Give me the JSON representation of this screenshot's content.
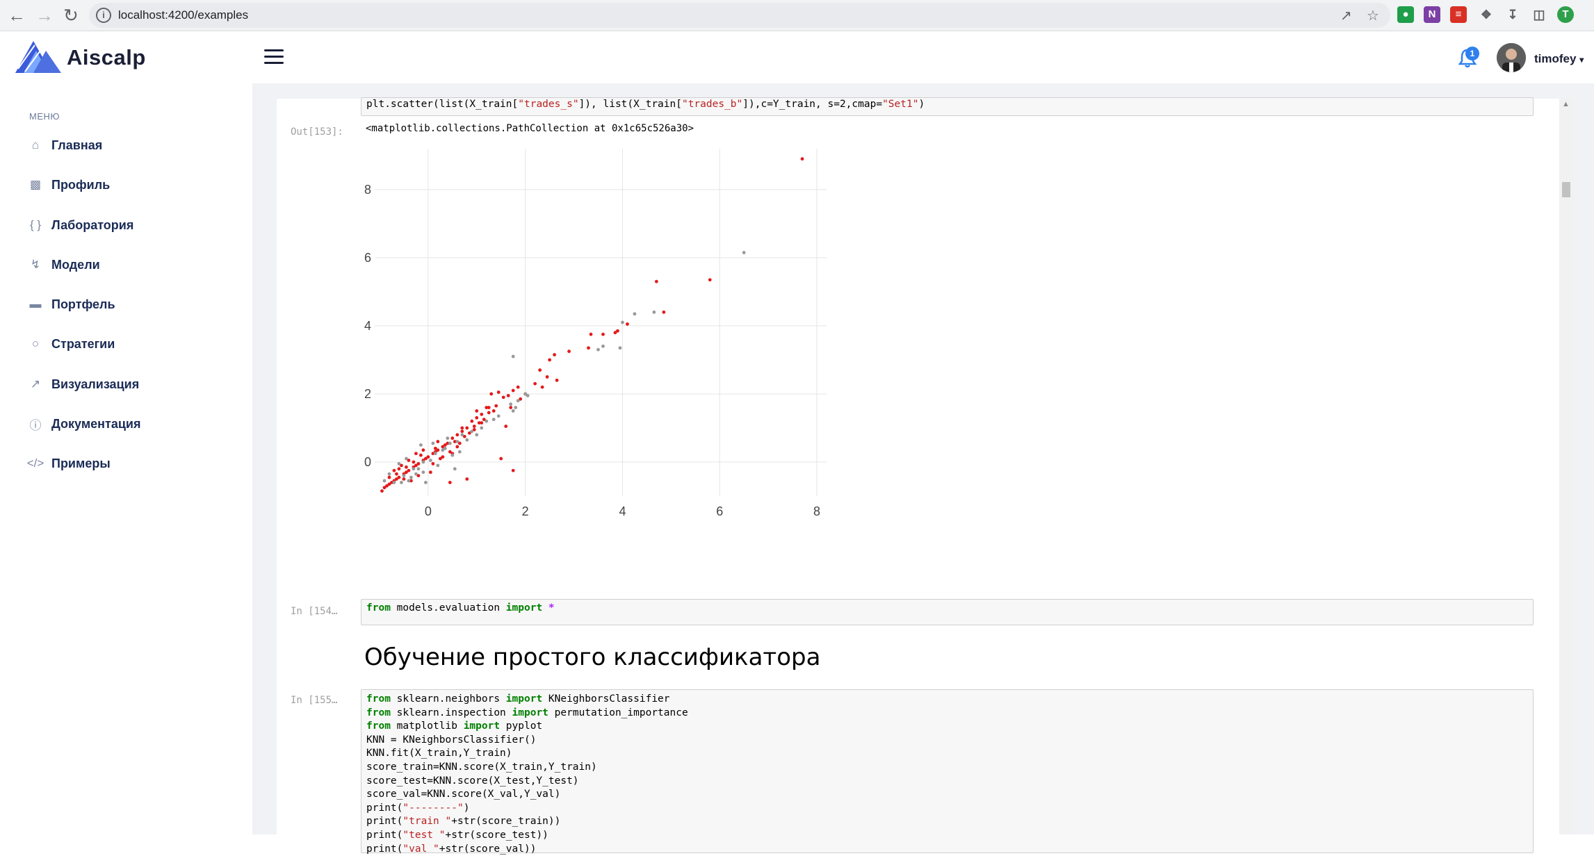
{
  "browser": {
    "url": "localhost:4200/examples",
    "profile_initial": "T"
  },
  "app": {
    "name": "Aiscalp",
    "notifications_count": "1",
    "username": "timofey"
  },
  "sidebar": {
    "menu_title": "МЕНЮ",
    "items": [
      {
        "label": "Главная",
        "icon": "home-icon"
      },
      {
        "label": "Профиль",
        "icon": "profile-icon"
      },
      {
        "label": "Лаборатория",
        "icon": "braces-icon"
      },
      {
        "label": "Модели",
        "icon": "lightning-icon"
      },
      {
        "label": "Портфель",
        "icon": "wallet-icon"
      },
      {
        "label": "Стратегии",
        "icon": "lightbulb-icon"
      },
      {
        "label": "Визуализация",
        "icon": "chart-line-icon"
      },
      {
        "label": "Документация",
        "icon": "info-icon"
      },
      {
        "label": "Примеры",
        "icon": "code-icon"
      }
    ]
  },
  "notebook": {
    "cell1_code": [
      "plt.scatter(list(X_train[\"trades_s\"]), list(X_train[\"trades_b\"]),c=Y_train, s=2,cmap=\"Set1\")"
    ],
    "out_prompt": "Out[153]:",
    "out_text": "<matplotlib.collections.PathCollection at 0x1c65c526a30>",
    "cell2_prompt": "In [154…",
    "cell2_code": [
      "from models.evaluation import *"
    ],
    "heading": "Обучение простого классификатора",
    "cell3_prompt": "In [155…",
    "cell3_code": [
      "from sklearn.neighbors import KNeighborsClassifier",
      "from sklearn.inspection import permutation_importance",
      "from matplotlib import pyplot",
      "KNN = KNeighborsClassifier()",
      "KNN.fit(X_train,Y_train)",
      "score_train=KNN.score(X_train,Y_train)",
      "score_test=KNN.score(X_test,Y_test)",
      "score_val=KNN.score(X_val,Y_val)",
      "print(\"--------\")",
      "print(\"train \"+str(score_train))",
      "print(\"test \"+str(score_test))",
      "print(\"val \"+str(score_val))"
    ]
  },
  "chart_data": {
    "type": "scatter",
    "title": "",
    "xlabel": "",
    "ylabel": "",
    "xlim": [
      -1.1,
      8.2
    ],
    "ylim": [
      -1.0,
      9.2
    ],
    "xticks": [
      0,
      2,
      4,
      6,
      8
    ],
    "yticks": [
      0,
      2,
      4,
      6,
      8
    ],
    "grid": true,
    "colors": {
      "red": "#e41a1c",
      "gray": "#999999"
    },
    "series": [
      {
        "color": "red",
        "points": [
          [
            7.7,
            8.9
          ],
          [
            5.8,
            5.35
          ],
          [
            4.7,
            5.3
          ],
          [
            4.85,
            4.4
          ],
          [
            4.1,
            4.05
          ],
          [
            3.9,
            3.85
          ],
          [
            3.85,
            3.8
          ],
          [
            3.6,
            3.75
          ],
          [
            3.35,
            3.75
          ],
          [
            3.3,
            3.35
          ],
          [
            2.9,
            3.25
          ],
          [
            2.6,
            3.15
          ],
          [
            2.3,
            2.7
          ],
          [
            2.5,
            3.0
          ],
          [
            2.35,
            2.2
          ],
          [
            2.0,
            2.0
          ],
          [
            1.75,
            2.1
          ],
          [
            1.55,
            1.9
          ],
          [
            1.45,
            2.05
          ],
          [
            1.3,
            2.0
          ],
          [
            1.4,
            1.65
          ],
          [
            1.2,
            1.6
          ],
          [
            1.1,
            1.4
          ],
          [
            1.0,
            1.3
          ],
          [
            0.9,
            1.2
          ],
          [
            0.8,
            1.0
          ],
          [
            0.7,
            0.9
          ],
          [
            0.6,
            0.8
          ],
          [
            0.5,
            0.7
          ],
          [
            0.4,
            0.55
          ],
          [
            0.3,
            0.45
          ],
          [
            0.2,
            0.35
          ],
          [
            0.1,
            0.25
          ],
          [
            0.0,
            0.15
          ],
          [
            -0.1,
            0.05
          ],
          [
            -0.2,
            -0.05
          ],
          [
            -0.3,
            -0.15
          ],
          [
            -0.4,
            -0.25
          ],
          [
            -0.5,
            -0.35
          ],
          [
            -0.6,
            -0.45
          ],
          [
            -0.7,
            -0.55
          ],
          [
            -0.8,
            -0.65
          ],
          [
            -0.95,
            -0.85
          ],
          [
            1.5,
            0.1
          ],
          [
            1.75,
            -0.25
          ],
          [
            0.8,
            -0.5
          ],
          [
            0.45,
            -0.6
          ],
          [
            1.6,
            1.05
          ],
          [
            1.25,
            1.6
          ],
          [
            1.65,
            1.95
          ],
          [
            1.1,
            1.15
          ],
          [
            0.95,
            0.95
          ],
          [
            0.55,
            0.6
          ],
          [
            0.35,
            0.5
          ],
          [
            0.15,
            0.3
          ],
          [
            -0.05,
            0.1
          ],
          [
            -0.25,
            -0.1
          ],
          [
            -0.45,
            -0.3
          ],
          [
            -0.65,
            -0.5
          ],
          [
            -0.75,
            -0.6
          ],
          [
            -0.85,
            -0.7
          ],
          [
            -0.6,
            -0.2
          ],
          [
            -0.3,
            0.0
          ],
          [
            -0.5,
            -0.5
          ],
          [
            -0.2,
            -0.4
          ],
          [
            0.05,
            -0.3
          ],
          [
            0.25,
            0.1
          ],
          [
            0.45,
            0.3
          ],
          [
            0.65,
            0.55
          ],
          [
            0.85,
            0.85
          ],
          [
            1.05,
            1.15
          ],
          [
            1.25,
            1.45
          ],
          [
            -0.35,
            -0.55
          ],
          [
            -0.15,
            0.2
          ],
          [
            0.15,
            0.4
          ],
          [
            -0.55,
            -0.1
          ],
          [
            0.5,
            0.25
          ],
          [
            0.75,
            0.75
          ],
          [
            0.95,
            1.05
          ],
          [
            1.15,
            1.25
          ],
          [
            1.35,
            1.5
          ],
          [
            2.2,
            2.3
          ],
          [
            2.45,
            2.5
          ],
          [
            2.65,
            2.4
          ],
          [
            1.9,
            1.85
          ],
          [
            1.7,
            1.6
          ],
          [
            -0.1,
            0.35
          ],
          [
            -0.4,
            0.05
          ],
          [
            0.3,
            0.15
          ],
          [
            0.1,
            -0.05
          ],
          [
            -0.65,
            -0.35
          ],
          [
            -0.8,
            -0.45
          ],
          [
            -0.45,
            -0.15
          ],
          [
            0.6,
            0.45
          ],
          [
            1.85,
            2.2
          ],
          [
            1.0,
            1.5
          ],
          [
            0.7,
            1.0
          ],
          [
            0.2,
            0.6
          ],
          [
            -0.25,
            0.25
          ],
          [
            -0.7,
            -0.25
          ],
          [
            -0.9,
            -0.75
          ]
        ]
      },
      {
        "color": "gray",
        "points": [
          [
            6.5,
            6.15
          ],
          [
            4.65,
            4.4
          ],
          [
            4.25,
            4.35
          ],
          [
            4.0,
            4.1
          ],
          [
            3.95,
            3.35
          ],
          [
            3.5,
            3.3
          ],
          [
            3.6,
            3.4
          ],
          [
            1.75,
            3.1
          ],
          [
            2.05,
            1.95
          ],
          [
            2.0,
            2.0
          ],
          [
            1.85,
            1.8
          ],
          [
            1.75,
            1.5
          ],
          [
            1.8,
            1.6
          ],
          [
            1.7,
            1.7
          ],
          [
            1.45,
            1.35
          ],
          [
            1.2,
            1.2
          ],
          [
            0.9,
            0.9
          ],
          [
            0.6,
            0.6
          ],
          [
            0.35,
            0.4
          ],
          [
            0.15,
            0.25
          ],
          [
            -0.1,
            0.0
          ],
          [
            -0.3,
            -0.2
          ],
          [
            -0.5,
            -0.4
          ],
          [
            -0.7,
            -0.6
          ],
          [
            -0.9,
            -0.55
          ],
          [
            -0.55,
            -0.6
          ],
          [
            -0.35,
            -0.45
          ],
          [
            -0.1,
            -0.3
          ],
          [
            0.1,
            0.55
          ],
          [
            0.4,
            0.7
          ],
          [
            0.5,
            0.2
          ],
          [
            0.8,
            0.65
          ],
          [
            -0.15,
            0.5
          ],
          [
            -0.45,
            0.1
          ],
          [
            -0.6,
            -0.05
          ],
          [
            -0.05,
            -0.6
          ],
          [
            0.3,
            0.35
          ],
          [
            0.55,
            -0.2
          ],
          [
            1.1,
            1.0
          ],
          [
            1.35,
            1.25
          ],
          [
            -0.8,
            -0.35
          ],
          [
            -0.25,
            -0.35
          ],
          [
            0.05,
            0.05
          ],
          [
            0.2,
            -0.1
          ],
          [
            0.65,
            0.3
          ],
          [
            -0.4,
            -0.55
          ],
          [
            -0.2,
            -0.2
          ],
          [
            0.7,
            0.8
          ],
          [
            1.0,
            0.8
          ],
          [
            0.45,
            0.55
          ]
        ]
      }
    ]
  }
}
